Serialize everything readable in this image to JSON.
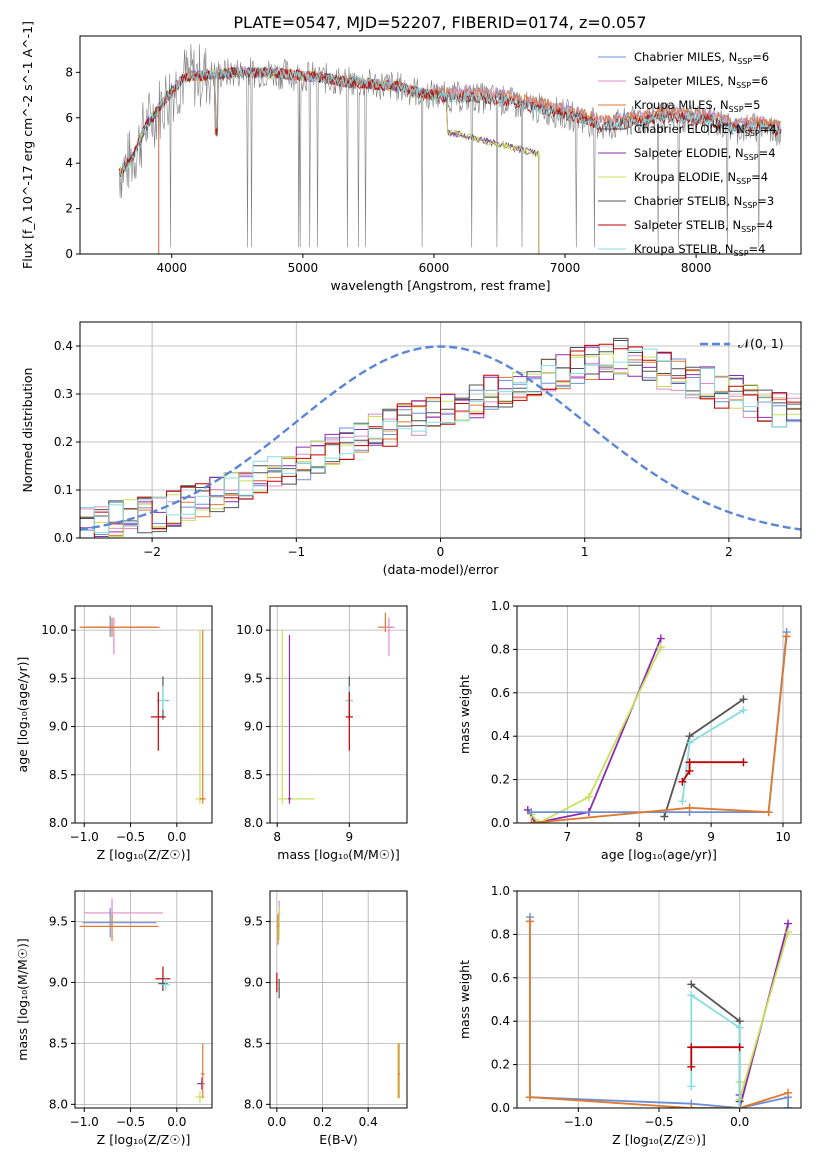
{
  "figure_title": "PLATE=0547, MJD=52207, FIBERID=0174, z=0.057",
  "colors": {
    "Chabrier MILES": "#6a8fd8",
    "Salpeter MILES": "#e08cc8",
    "Kroupa MILES": "#e07a2e",
    "Chabrier ELODIE": "#4d4d4d",
    "Salpeter ELODIE": "#8e2bb0",
    "Kroupa ELODIE": "#c8e05a",
    "Chabrier STELIB": "#555555",
    "Salpeter STELIB": "#c00000",
    "Kroupa STELIB": "#88dde0",
    "data": "#808080",
    "normal": "#5b86d6"
  },
  "chart_data": [
    {
      "id": "spectrum",
      "type": "line",
      "xlabel": "wavelength [Angstrom, rest frame]",
      "ylabel": "Flux [f_λ 10^-17 erg cm^-2 s^-1 A^-1]",
      "xlim": [
        3300,
        8800
      ],
      "ylim": [
        0,
        9.6
      ],
      "xticks": [
        4000,
        5000,
        6000,
        7000,
        8000
      ],
      "yticks": [
        0,
        2,
        4,
        6,
        8
      ],
      "grid": false,
      "legend_position": "top-right",
      "legend": [
        {
          "label": "Chabrier MILES, N",
          "sub": "SSP",
          "suffix": "=6",
          "series": "Chabrier MILES"
        },
        {
          "label": "Salpeter MILES, N",
          "sub": "SSP",
          "suffix": "=6",
          "series": "Salpeter MILES"
        },
        {
          "label": "Kroupa MILES, N",
          "sub": "SSP",
          "suffix": "=5",
          "series": "Kroupa MILES"
        },
        {
          "label": "Chabrier ELODIE, N",
          "sub": "SSP",
          "suffix": "=4",
          "series": "Chabrier ELODIE"
        },
        {
          "label": "Salpeter ELODIE, N",
          "sub": "SSP",
          "suffix": "=4",
          "series": "Salpeter ELODIE"
        },
        {
          "label": "Kroupa ELODIE, N",
          "sub": "SSP",
          "suffix": "=4",
          "series": "Kroupa ELODIE"
        },
        {
          "label": "Chabrier STELIB, N",
          "sub": "SSP",
          "suffix": "=3",
          "series": "Chabrier STELIB"
        },
        {
          "label": "Salpeter STELIB, N",
          "sub": "SSP",
          "suffix": "=4",
          "series": "Salpeter STELIB"
        },
        {
          "label": "Kroupa STELIB, N",
          "sub": "SSP",
          "suffix": "=4",
          "series": "Kroupa STELIB"
        }
      ],
      "continuum": [
        {
          "x": 3600,
          "y": 3.6
        },
        {
          "x": 3700,
          "y": 4.2
        },
        {
          "x": 3800,
          "y": 5.6
        },
        {
          "x": 3900,
          "y": 6.4
        },
        {
          "x": 4000,
          "y": 7.2
        },
        {
          "x": 4100,
          "y": 7.8
        },
        {
          "x": 4300,
          "y": 7.9
        },
        {
          "x": 4500,
          "y": 8.0
        },
        {
          "x": 4700,
          "y": 8.0
        },
        {
          "x": 4900,
          "y": 7.9
        },
        {
          "x": 5100,
          "y": 7.8
        },
        {
          "x": 5300,
          "y": 7.6
        },
        {
          "x": 5500,
          "y": 7.5
        },
        {
          "x": 5700,
          "y": 7.4
        },
        {
          "x": 5900,
          "y": 7.1
        },
        {
          "x": 6100,
          "y": 6.9
        },
        {
          "x": 6300,
          "y": 6.9
        },
        {
          "x": 6500,
          "y": 6.8
        },
        {
          "x": 6700,
          "y": 6.5
        },
        {
          "x": 6900,
          "y": 6.3
        },
        {
          "x": 7100,
          "y": 6.0
        },
        {
          "x": 7300,
          "y": 5.6
        },
        {
          "x": 7500,
          "y": 5.8
        },
        {
          "x": 7700,
          "y": 6.0
        },
        {
          "x": 7900,
          "y": 6.0
        },
        {
          "x": 8100,
          "y": 5.9
        },
        {
          "x": 8300,
          "y": 5.5
        },
        {
          "x": 8500,
          "y": 5.6
        },
        {
          "x": 8650,
          "y": 5.4
        }
      ],
      "elodie_cut": {
        "x_end": 6800,
        "drop_start": 6100,
        "level_after_drop": 4.4
      },
      "miles_start": 3900
    },
    {
      "id": "residuals",
      "type": "histogram",
      "xlabel": "(data-model)/error",
      "ylabel": "Normed distribution",
      "xlim": [
        -2.5,
        2.5
      ],
      "ylim": [
        0,
        0.45
      ],
      "xticks": [
        -2,
        -1,
        0,
        1,
        2
      ],
      "yticks": [
        0.0,
        0.1,
        0.2,
        0.3,
        0.4
      ],
      "grid": true,
      "legend_position": "top-right",
      "normal_label": "𝒩(0, 1)",
      "bin_width": 0.1,
      "base_shape": [
        0.03,
        0.03,
        0.04,
        0.04,
        0.05,
        0.05,
        0.06,
        0.07,
        0.08,
        0.09,
        0.1,
        0.11,
        0.12,
        0.13,
        0.15,
        0.16,
        0.17,
        0.19,
        0.2,
        0.21,
        0.22,
        0.23,
        0.24,
        0.25,
        0.26,
        0.27,
        0.28,
        0.29,
        0.3,
        0.31,
        0.32,
        0.33,
        0.34,
        0.35,
        0.36,
        0.37,
        0.37,
        0.38,
        0.37,
        0.36,
        0.35,
        0.34,
        0.33,
        0.32,
        0.31,
        0.3,
        0.29,
        0.28,
        0.27,
        0.26
      ],
      "base_shape_right": [
        0.35,
        0.34,
        0.33,
        0.32,
        0.31,
        0.3,
        0.29,
        0.28,
        0.27,
        0.26,
        0.25,
        0.24,
        0.23,
        0.22,
        0.21,
        0.2,
        0.19,
        0.18,
        0.17,
        0.16,
        0.15,
        0.14,
        0.13,
        0.12,
        0.11,
        0.1,
        0.1,
        0.09,
        0.09,
        0.08,
        0.08,
        0.07,
        0.07,
        0.06,
        0.06,
        0.06,
        0.05,
        0.05,
        0.05,
        0.05,
        0.05,
        0.06,
        0.06,
        0.07,
        0.08,
        0.09,
        0.1,
        0.11,
        0.12,
        0.12
      ]
    },
    {
      "id": "age_vs_Z",
      "type": "scatter",
      "xlabel": "Z [log₁₀(Z/Z☉)]",
      "ylabel": "age  [log₁₀(age/yr)]",
      "xlim": [
        -1.1,
        0.38
      ],
      "ylim": [
        8.0,
        10.25
      ],
      "xticks": [
        -1.0,
        -0.5,
        0.0
      ],
      "yticks": [
        8.0,
        8.5,
        9.0,
        9.5,
        10.0
      ],
      "points": [
        {
          "s": "Chabrier MILES",
          "x": -0.72,
          "y": 10.03,
          "xl": 0.28,
          "xh": 0.5,
          "yl": 0.1,
          "yh": 0.12
        },
        {
          "s": "Salpeter MILES",
          "x": -0.68,
          "y": 10.03,
          "xl": 0.3,
          "xh": 0.5,
          "yl": 0.28,
          "yh": 0.1
        },
        {
          "s": "Kroupa MILES",
          "x": -0.7,
          "y": 10.03,
          "xl": 0.35,
          "xh": 0.5,
          "yl": 0.1,
          "yh": 0.1
        },
        {
          "s": "Chabrier STELIB",
          "x": -0.15,
          "y": 9.27,
          "xl": 0.06,
          "xh": 0.06,
          "yl": 0.2,
          "yh": 0.25
        },
        {
          "s": "Kroupa STELIB",
          "x": -0.15,
          "y": 9.27,
          "xl": 0.05,
          "xh": 0.05,
          "yl": 0.1,
          "yh": 0.15
        },
        {
          "s": "Salpeter STELIB",
          "x": -0.2,
          "y": 9.1,
          "xl": 0.08,
          "xh": 0.08,
          "yl": 0.35,
          "yh": 0.26
        },
        {
          "s": "Kroupa ELODIE",
          "x": 0.25,
          "y": 8.25,
          "xl": 0.05,
          "xh": 0.05,
          "yl": 0.05,
          "yh": 1.75
        },
        {
          "s": "Kroupa MILES",
          "x": 0.28,
          "y": 8.25,
          "xl": 0.03,
          "xh": 0.03,
          "yl": 0.05,
          "yh": 1.75
        }
      ]
    },
    {
      "id": "age_vs_mass",
      "type": "scatter",
      "xlabel": "mass [log₁₀(M/M☉)]",
      "ylabel": "",
      "xlim": [
        7.9,
        9.8
      ],
      "ylim": [
        8.0,
        10.25
      ],
      "xticks": [
        8,
        9
      ],
      "yticks": [
        8.0,
        8.5,
        9.0,
        9.5,
        10.0
      ],
      "points": [
        {
          "s": "Kroupa MILES",
          "x": 9.5,
          "y": 10.03,
          "xl": 0.1,
          "xh": 0.1,
          "yl": 0.05,
          "yh": 0.15
        },
        {
          "s": "Salpeter MILES",
          "x": 9.55,
          "y": 10.03,
          "xl": 0.05,
          "xh": 0.08,
          "yl": 0.3,
          "yh": 0.1
        },
        {
          "s": "Chabrier STELIB",
          "x": 9.0,
          "y": 9.27,
          "xl": 0.05,
          "xh": 0.05,
          "yl": 0.2,
          "yh": 0.25
        },
        {
          "s": "Kroupa STELIB",
          "x": 9.0,
          "y": 9.27,
          "xl": 0.05,
          "xh": 0.05,
          "yl": 0.1,
          "yh": 0.15
        },
        {
          "s": "Salpeter STELIB",
          "x": 9.0,
          "y": 9.1,
          "xl": 0.05,
          "xh": 0.05,
          "yl": 0.35,
          "yh": 0.26
        },
        {
          "s": "Kroupa ELODIE",
          "x": 8.07,
          "y": 8.25,
          "xl": 0.05,
          "xh": 0.45,
          "yl": 0.05,
          "yh": 1.75
        },
        {
          "s": "Salpeter ELODIE",
          "x": 8.17,
          "y": 8.25,
          "xl": 0.02,
          "xh": 0.02,
          "yl": 0.05,
          "yh": 1.7
        }
      ]
    },
    {
      "id": "weight_vs_age",
      "type": "line",
      "xlabel": "age  [log₁₀(age/yr)]",
      "ylabel": "mass weight",
      "xlim": [
        6.3,
        10.25
      ],
      "ylim": [
        0,
        1.0
      ],
      "xticks": [
        7,
        8,
        9,
        10
      ],
      "yticks": [
        0.0,
        0.2,
        0.4,
        0.6,
        0.8,
        1.0
      ],
      "series": [
        {
          "s": "Salpeter ELODIE",
          "pts": [
            [
              6.45,
              0.06
            ],
            [
              6.55,
              0.0
            ],
            [
              7.3,
              0.05
            ],
            [
              8.3,
              0.85
            ]
          ]
        },
        {
          "s": "Kroupa ELODIE",
          "pts": [
            [
              6.5,
              0.04
            ],
            [
              6.6,
              0.0
            ],
            [
              7.3,
              0.12
            ],
            [
              8.3,
              0.81
            ]
          ]
        },
        {
          "s": "Chabrier STELIB",
          "pts": [
            [
              8.35,
              0.03
            ],
            [
              8.7,
              0.4
            ],
            [
              9.45,
              0.57
            ]
          ]
        },
        {
          "s": "Kroupa STELIB",
          "pts": [
            [
              8.6,
              0.1
            ],
            [
              8.7,
              0.37
            ],
            [
              9.45,
              0.52
            ]
          ]
        },
        {
          "s": "Salpeter STELIB",
          "pts": [
            [
              8.6,
              0.19
            ],
            [
              8.7,
              0.24
            ],
            [
              8.7,
              0.28
            ],
            [
              9.45,
              0.28
            ]
          ]
        },
        {
          "s": "Chabrier MILES",
          "pts": [
            [
              6.5,
              0.05
            ],
            [
              8.7,
              0.05
            ],
            [
              9.8,
              0.05
            ],
            [
              10.05,
              0.88
            ]
          ]
        },
        {
          "s": "Kroupa MILES",
          "pts": [
            [
              6.5,
              0.0
            ],
            [
              8.7,
              0.07
            ],
            [
              9.8,
              0.05
            ],
            [
              10.05,
              0.86
            ]
          ]
        }
      ]
    },
    {
      "id": "mass_vs_Z",
      "type": "scatter",
      "xlabel": "Z [log₁₀(Z/Z☉)]",
      "ylabel": "mass [log₁₀(M/M☉)]",
      "xlim": [
        -1.1,
        0.38
      ],
      "ylim": [
        7.97,
        9.75
      ],
      "xticks": [
        -1.0,
        -0.5,
        0.0
      ],
      "yticks": [
        8.0,
        8.5,
        9.0,
        9.5
      ],
      "points": [
        {
          "s": "Salpeter MILES",
          "x": -0.7,
          "y": 9.57,
          "xl": 0.3,
          "xh": 0.55,
          "yl": 0.1,
          "yh": 0.12
        },
        {
          "s": "Chabrier MILES",
          "x": -0.72,
          "y": 9.49,
          "xl": 0.3,
          "xh": 0.5,
          "yl": 0.12,
          "yh": 0.12
        },
        {
          "s": "Kroupa MILES",
          "x": -0.7,
          "y": 9.46,
          "xl": 0.35,
          "xh": 0.5,
          "yl": 0.12,
          "yh": 0.1
        },
        {
          "s": "Salpeter STELIB",
          "x": -0.15,
          "y": 9.03,
          "xl": 0.08,
          "xh": 0.08,
          "yl": 0.1,
          "yh": 0.1
        },
        {
          "s": "Chabrier STELIB",
          "x": -0.15,
          "y": 8.99,
          "xl": 0.05,
          "xh": 0.05,
          "yl": 0.05,
          "yh": 0.05
        },
        {
          "s": "Kroupa STELIB",
          "x": -0.12,
          "y": 8.98,
          "xl": 0.05,
          "xh": 0.05,
          "yl": 0.05,
          "yh": 0.05
        },
        {
          "s": "Salpeter ELODIE",
          "x": 0.27,
          "y": 8.17,
          "xl": 0.05,
          "xh": 0.03,
          "yl": 0.05,
          "yh": 0.05
        },
        {
          "s": "Kroupa ELODIE",
          "x": 0.25,
          "y": 8.06,
          "xl": 0.05,
          "xh": 0.05,
          "yl": 0.05,
          "yh": 0.05
        },
        {
          "s": "Kroupa MILES",
          "x": 0.28,
          "y": 8.25,
          "xl": 0.02,
          "xh": 0.02,
          "yl": 0.2,
          "yh": 0.25
        }
      ]
    },
    {
      "id": "mass_vs_ebv",
      "type": "scatter",
      "xlabel": "E(B-V)",
      "ylabel": "",
      "xlim": [
        -0.03,
        0.57
      ],
      "ylim": [
        7.97,
        9.75
      ],
      "xticks": [
        0.0,
        0.2,
        0.4
      ],
      "yticks": [
        8.0,
        8.5,
        9.0,
        9.5
      ],
      "points": [
        {
          "s": "Salpeter MILES",
          "x": 0.01,
          "y": 9.57,
          "xl": 0.005,
          "xh": 0.005,
          "yl": 0.12,
          "yh": 0.1
        },
        {
          "s": "Kroupa MILES",
          "x": 0.005,
          "y": 9.46,
          "xl": 0.005,
          "xh": 0.005,
          "yl": 0.15,
          "yh": 0.1
        },
        {
          "s": "Kroupa ELODIE",
          "x": 0.01,
          "y": 9.5,
          "xl": 0.005,
          "xh": 0.005,
          "yl": 0.15,
          "yh": 0.12
        },
        {
          "s": "Salpeter STELIB",
          "x": 0.0,
          "y": 9.0,
          "xl": 0.003,
          "xh": 0.003,
          "yl": 0.08,
          "yh": 0.08
        },
        {
          "s": "Chabrier STELIB",
          "x": 0.01,
          "y": 8.95,
          "xl": 0.003,
          "xh": 0.003,
          "yl": 0.08,
          "yh": 0.08
        },
        {
          "s": "Kroupa ELODIE",
          "x": 0.53,
          "y": 8.2,
          "xl": 0.005,
          "xh": 0.005,
          "yl": 0.15,
          "yh": 0.3
        },
        {
          "s": "Kroupa MILES",
          "x": 0.535,
          "y": 8.25,
          "xl": 0.005,
          "xh": 0.005,
          "yl": 0.2,
          "yh": 0.25
        }
      ]
    },
    {
      "id": "weight_vs_Z",
      "type": "line",
      "xlabel": "Z [log₁₀(Z/Z☉)]",
      "ylabel": "mass weight",
      "xlim": [
        -1.38,
        0.38
      ],
      "ylim": [
        0,
        1.0
      ],
      "xticks": [
        -1.0,
        -0.5,
        0.0
      ],
      "yticks": [
        0.0,
        0.2,
        0.4,
        0.6,
        0.8,
        1.0
      ],
      "series": [
        {
          "s": "Chabrier MILES",
          "pts": [
            [
              -1.3,
              0.88
            ],
            [
              -1.3,
              0.05
            ],
            [
              -0.3,
              0.02
            ],
            [
              0.0,
              0.0
            ],
            [
              0.3,
              0.05
            ],
            [
              0.3,
              0.0
            ]
          ]
        },
        {
          "s": "Kroupa MILES",
          "pts": [
            [
              -1.3,
              0.86
            ],
            [
              -1.3,
              0.05
            ],
            [
              -0.3,
              0.0
            ],
            [
              0.0,
              0.0
            ],
            [
              0.3,
              0.07
            ]
          ]
        },
        {
          "s": "Salpeter ELODIE",
          "pts": [
            [
              0.0,
              0.06
            ],
            [
              0.0,
              0.0
            ],
            [
              0.3,
              0.85
            ]
          ]
        },
        {
          "s": "Kroupa ELODIE",
          "pts": [
            [
              0.0,
              0.12
            ],
            [
              0.0,
              0.04
            ],
            [
              0.3,
              0.81
            ]
          ]
        },
        {
          "s": "Chabrier STELIB",
          "pts": [
            [
              -0.3,
              0.57
            ],
            [
              0.0,
              0.4
            ],
            [
              0.0,
              0.03
            ]
          ]
        },
        {
          "s": "Kroupa STELIB",
          "pts": [
            [
              -0.3,
              0.1
            ],
            [
              -0.3,
              0.52
            ],
            [
              0.0,
              0.37
            ],
            [
              0.0,
              0.0
            ]
          ]
        },
        {
          "s": "Salpeter STELIB",
          "pts": [
            [
              -0.3,
              0.19
            ],
            [
              -0.3,
              0.28
            ],
            [
              0.0,
              0.28
            ]
          ]
        }
      ]
    }
  ]
}
